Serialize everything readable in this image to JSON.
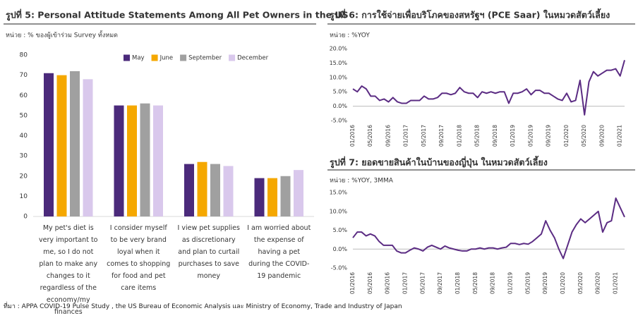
{
  "chart_data": [
    {
      "type": "bar",
      "title": "รูปที่ 5: Personal Attitude Statements Among All Pet Owners in the US",
      "subtitle": "หน่วย : % ของผู้เข้าร่วม Survey ทั้งหมด",
      "categories": [
        "My pet's diet is very important to me, so I do not plan to make any changes to it regardless of the economy/my finances",
        "I consider myself to be very brand loyal when it comes to shopping for food and pet care items",
        "I view pet supplies as discretionary and plan to curtail purchases to save money",
        "I am worried about the expense of having a pet during the COVID-19 pandemic"
      ],
      "series": [
        {
          "name": "May",
          "color": "#4b2a7b",
          "values": [
            71,
            55,
            26,
            19
          ]
        },
        {
          "name": "June",
          "color": "#f5a800",
          "values": [
            70,
            55,
            27,
            19
          ]
        },
        {
          "name": "September",
          "color": "#a0a0a0",
          "values": [
            72,
            56,
            26,
            20
          ]
        },
        {
          "name": "December",
          "color": "#d9c8ec",
          "values": [
            68,
            55,
            25,
            23
          ]
        }
      ],
      "ylim": [
        0,
        80
      ],
      "yticks": [
        0,
        10,
        20,
        30,
        40,
        50,
        60,
        70,
        80
      ],
      "legend": "top"
    },
    {
      "type": "line",
      "title": "รูปที่ 6: การใช้จ่ายเพื่อบริโภคของสหรัฐฯ (PCE Saar) ในหมวดสัตว์เลี้ยง",
      "subtitle": "หน่วย : %YOY",
      "categories": [
        "01/2016",
        null,
        null,
        null,
        "05/2016",
        null,
        null,
        null,
        "09/2016",
        null,
        null,
        null,
        "01/2017",
        null,
        null,
        null,
        "05/2017",
        null,
        null,
        null,
        "09/2017",
        null,
        null,
        null,
        "01/2018",
        null,
        null,
        null,
        "05/2018",
        null,
        null,
        null,
        "09/2018",
        null,
        null,
        null,
        "01/2019",
        null,
        null,
        null,
        "05/2019",
        null,
        null,
        null,
        "09/2019",
        null,
        null,
        null,
        "01/2020",
        null,
        null,
        null,
        "05/2020",
        null,
        null,
        null,
        "09/2020",
        null,
        null,
        null,
        "01/2021",
        null
      ],
      "series": [
        {
          "name": "PCE",
          "color": "#5b2c83",
          "values": [
            6,
            5,
            7,
            6,
            3.5,
            3.5,
            2,
            2.5,
            1.5,
            3,
            1.5,
            1,
            1,
            2,
            2,
            2,
            3.5,
            2.5,
            2.5,
            3,
            4.5,
            4.5,
            4,
            4.5,
            6.5,
            5,
            4.5,
            4.5,
            3,
            5,
            4.5,
            5,
            4.5,
            5,
            5,
            1,
            4.5,
            4.5,
            5,
            6,
            4,
            5.5,
            5.5,
            4.5,
            4.5,
            3.5,
            2.5,
            2,
            4.5,
            1.5,
            2,
            9,
            -3,
            8.5,
            12,
            10.5,
            11.5,
            12.5,
            12.5,
            13,
            10.5,
            16
          ]
        }
      ],
      "ylim": [
        -5,
        20
      ],
      "yticks": [
        {
          "value": -5,
          "label": "-5.0%"
        },
        {
          "value": 0,
          "label": "0.0%"
        },
        {
          "value": 5,
          "label": "5.0%"
        },
        {
          "value": 10,
          "label": "10.0%"
        },
        {
          "value": 15,
          "label": "15.0%"
        },
        {
          "value": 20,
          "label": "20.0%"
        }
      ]
    },
    {
      "type": "line",
      "title": "รูปที่ 7: ยอดขายสินค้าในบ้านของญี่ปุ่น ในหมวดสัตว์เลี้ยง",
      "subtitle": "หน่วย : %YOY, 3MMA",
      "categories": [
        "01/2016",
        null,
        null,
        null,
        "05/2016",
        null,
        null,
        null,
        "09/2016",
        null,
        null,
        null,
        "01/2017",
        null,
        null,
        null,
        "05/2017",
        null,
        null,
        null,
        "09/2017",
        null,
        null,
        null,
        "01/2018",
        null,
        null,
        null,
        "05/2018",
        null,
        null,
        null,
        "09/2018",
        null,
        null,
        null,
        "01/2019",
        null,
        null,
        null,
        "05/2019",
        null,
        null,
        null,
        "09/2019",
        null,
        null,
        null,
        "01/2020",
        null,
        null,
        null,
        "05/2020",
        null,
        null,
        null,
        "09/2020",
        null,
        null,
        null,
        "01/2021",
        null,
        null
      ],
      "series": [
        {
          "name": "Japan",
          "color": "#5b2c83",
          "values": [
            3,
            4.5,
            4.5,
            3.5,
            4,
            3.5,
            2,
            1,
            1,
            1,
            -0.5,
            -1,
            -1,
            -0.3,
            0.3,
            0,
            -0.5,
            0.5,
            1,
            0.5,
            0,
            0.8,
            0.3,
            0,
            -0.3,
            -0.5,
            -0.5,
            0,
            0,
            0.3,
            0,
            0.3,
            0.3,
            0,
            0.3,
            0.5,
            1.5,
            1.5,
            1.2,
            1.5,
            1.3,
            2,
            3,
            4,
            7.5,
            5,
            3,
            0,
            -2.5,
            1,
            4.5,
            6.5,
            8,
            7,
            8,
            9,
            10,
            4.5,
            7,
            7.5,
            13.5,
            11,
            8.5
          ]
        }
      ],
      "ylim": [
        -5,
        15
      ],
      "yticks": [
        {
          "value": -5,
          "label": "-5.0%"
        },
        {
          "value": 0,
          "label": "0.0%"
        },
        {
          "value": 5,
          "label": "5.0%"
        },
        {
          "value": 10,
          "label": "10.0%"
        },
        {
          "value": 15,
          "label": "15.0%"
        }
      ]
    }
  ],
  "source": "ที่มา : APPA COVID-19 Pulse Study , the US Bureau of Economic Analysis และ Ministry of Economy, Trade and Industry of Japan"
}
